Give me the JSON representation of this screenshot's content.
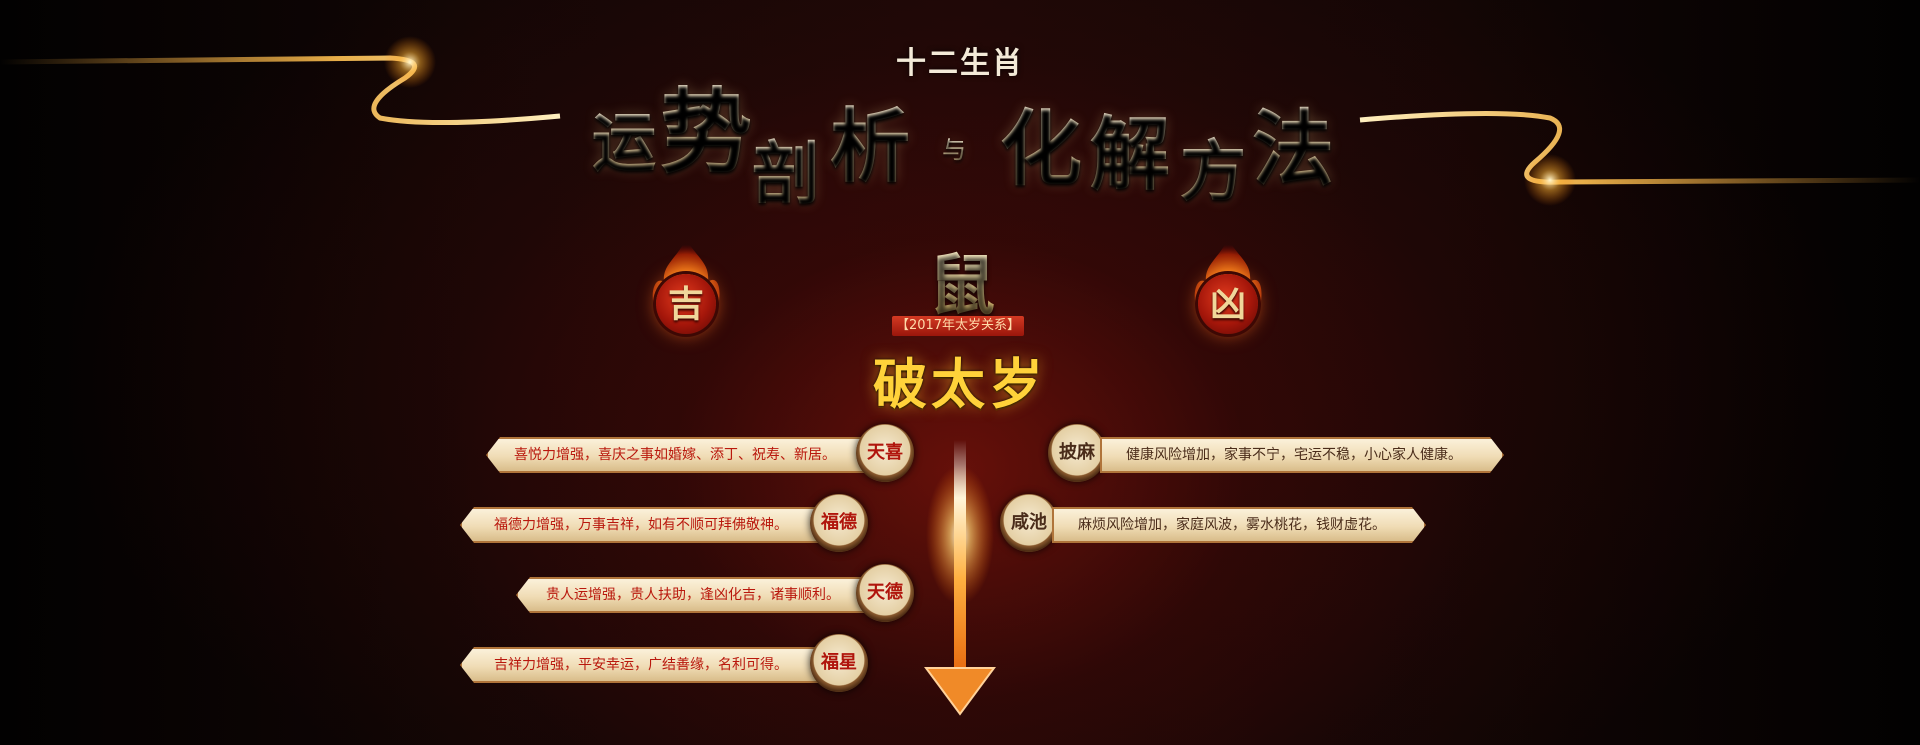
{
  "header": {
    "subtitle": "十二生肖",
    "title_chars": [
      "运",
      "势",
      "剖",
      "析"
    ],
    "connector": "与",
    "title_chars_2": [
      "化",
      "解",
      "方",
      "法"
    ]
  },
  "zodiac": {
    "animal": "鼠",
    "relation_label": "【2017年太岁关系】",
    "relation_value": "破太岁",
    "good_label": "吉",
    "bad_label": "凶"
  },
  "auspicious": [
    {
      "star": "天喜",
      "text": "喜悦力增强，喜庆之事如婚嫁、添丁、祝寿、新居。"
    },
    {
      "star": "福德",
      "text": "福德力增强，万事吉祥，如有不顺可拜佛敬神。"
    },
    {
      "star": "天德",
      "text": "贵人运增强，贵人扶助，逢凶化吉，诸事顺利。"
    },
    {
      "star": "福星",
      "text": "吉祥力增强，平安幸运，广结善缘，名利可得。"
    }
  ],
  "inauspicious": [
    {
      "star": "披麻",
      "text": "健康风险增加，家事不宁，宅运不稳，小心家人健康。"
    },
    {
      "star": "咸池",
      "text": "麻烦风险增加，家庭风波，雾水桃花，钱财虚花。"
    }
  ],
  "colors": {
    "accent_red": "#b9180d",
    "gold": "#ffd23a",
    "plate": "#f0dcb5"
  }
}
